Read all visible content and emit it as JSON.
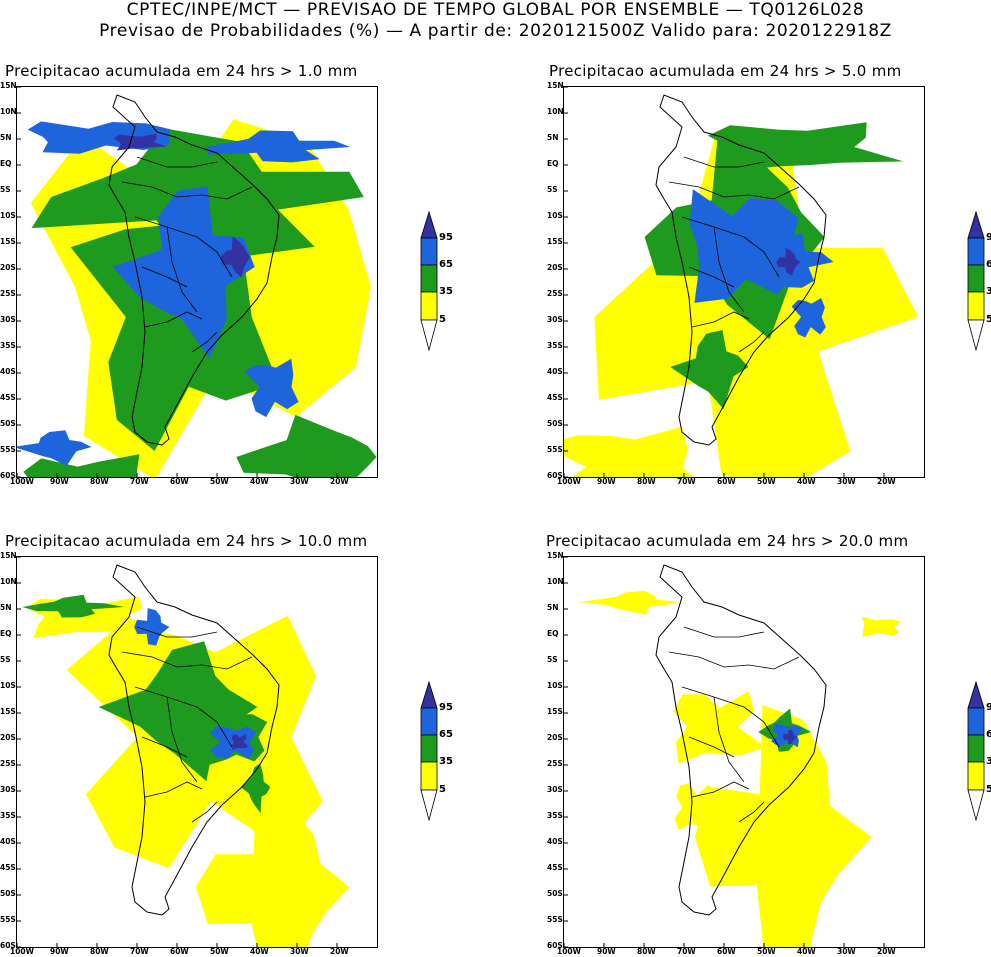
{
  "header": {
    "line1": "CPTEC/INPE/MCT — PREVISAO DE TEMPO GLOBAL POR ENSEMBLE — TQ0126L028",
    "line2": "Previsao de Probabilidades (%) —  A partir de: 2020121500Z  Valido para: 2020122918Z"
  },
  "colors": {
    "yellow": "#ffff00",
    "green": "#1e9b1e",
    "blue": "#1e64dc",
    "purple": "#3232a0"
  },
  "colorbar": {
    "labels": [
      "95",
      "65",
      "35",
      "5"
    ]
  },
  "axes": {
    "lat_labels": [
      "15N",
      "10N",
      "5N",
      "EQ",
      "5S",
      "10S",
      "15S",
      "20S",
      "25S",
      "30S",
      "35S",
      "40S",
      "45S",
      "50S",
      "55S",
      "60S"
    ],
    "lon_labels": [
      "100W",
      "90W",
      "80W",
      "70W",
      "60W",
      "50W",
      "40W",
      "30W",
      "20W"
    ]
  },
  "panels": [
    {
      "title": "Precipitacao acumulada em 24 hrs > 1.0 mm"
    },
    {
      "title": "Precipitacao acumulada em 24 hrs > 5.0 mm"
    },
    {
      "title": "Precipitacao acumulada em 24 hrs > 10.0 mm"
    },
    {
      "title": "Precipitacao acumulada em 24 hrs > 20.0 mm"
    }
  ]
}
